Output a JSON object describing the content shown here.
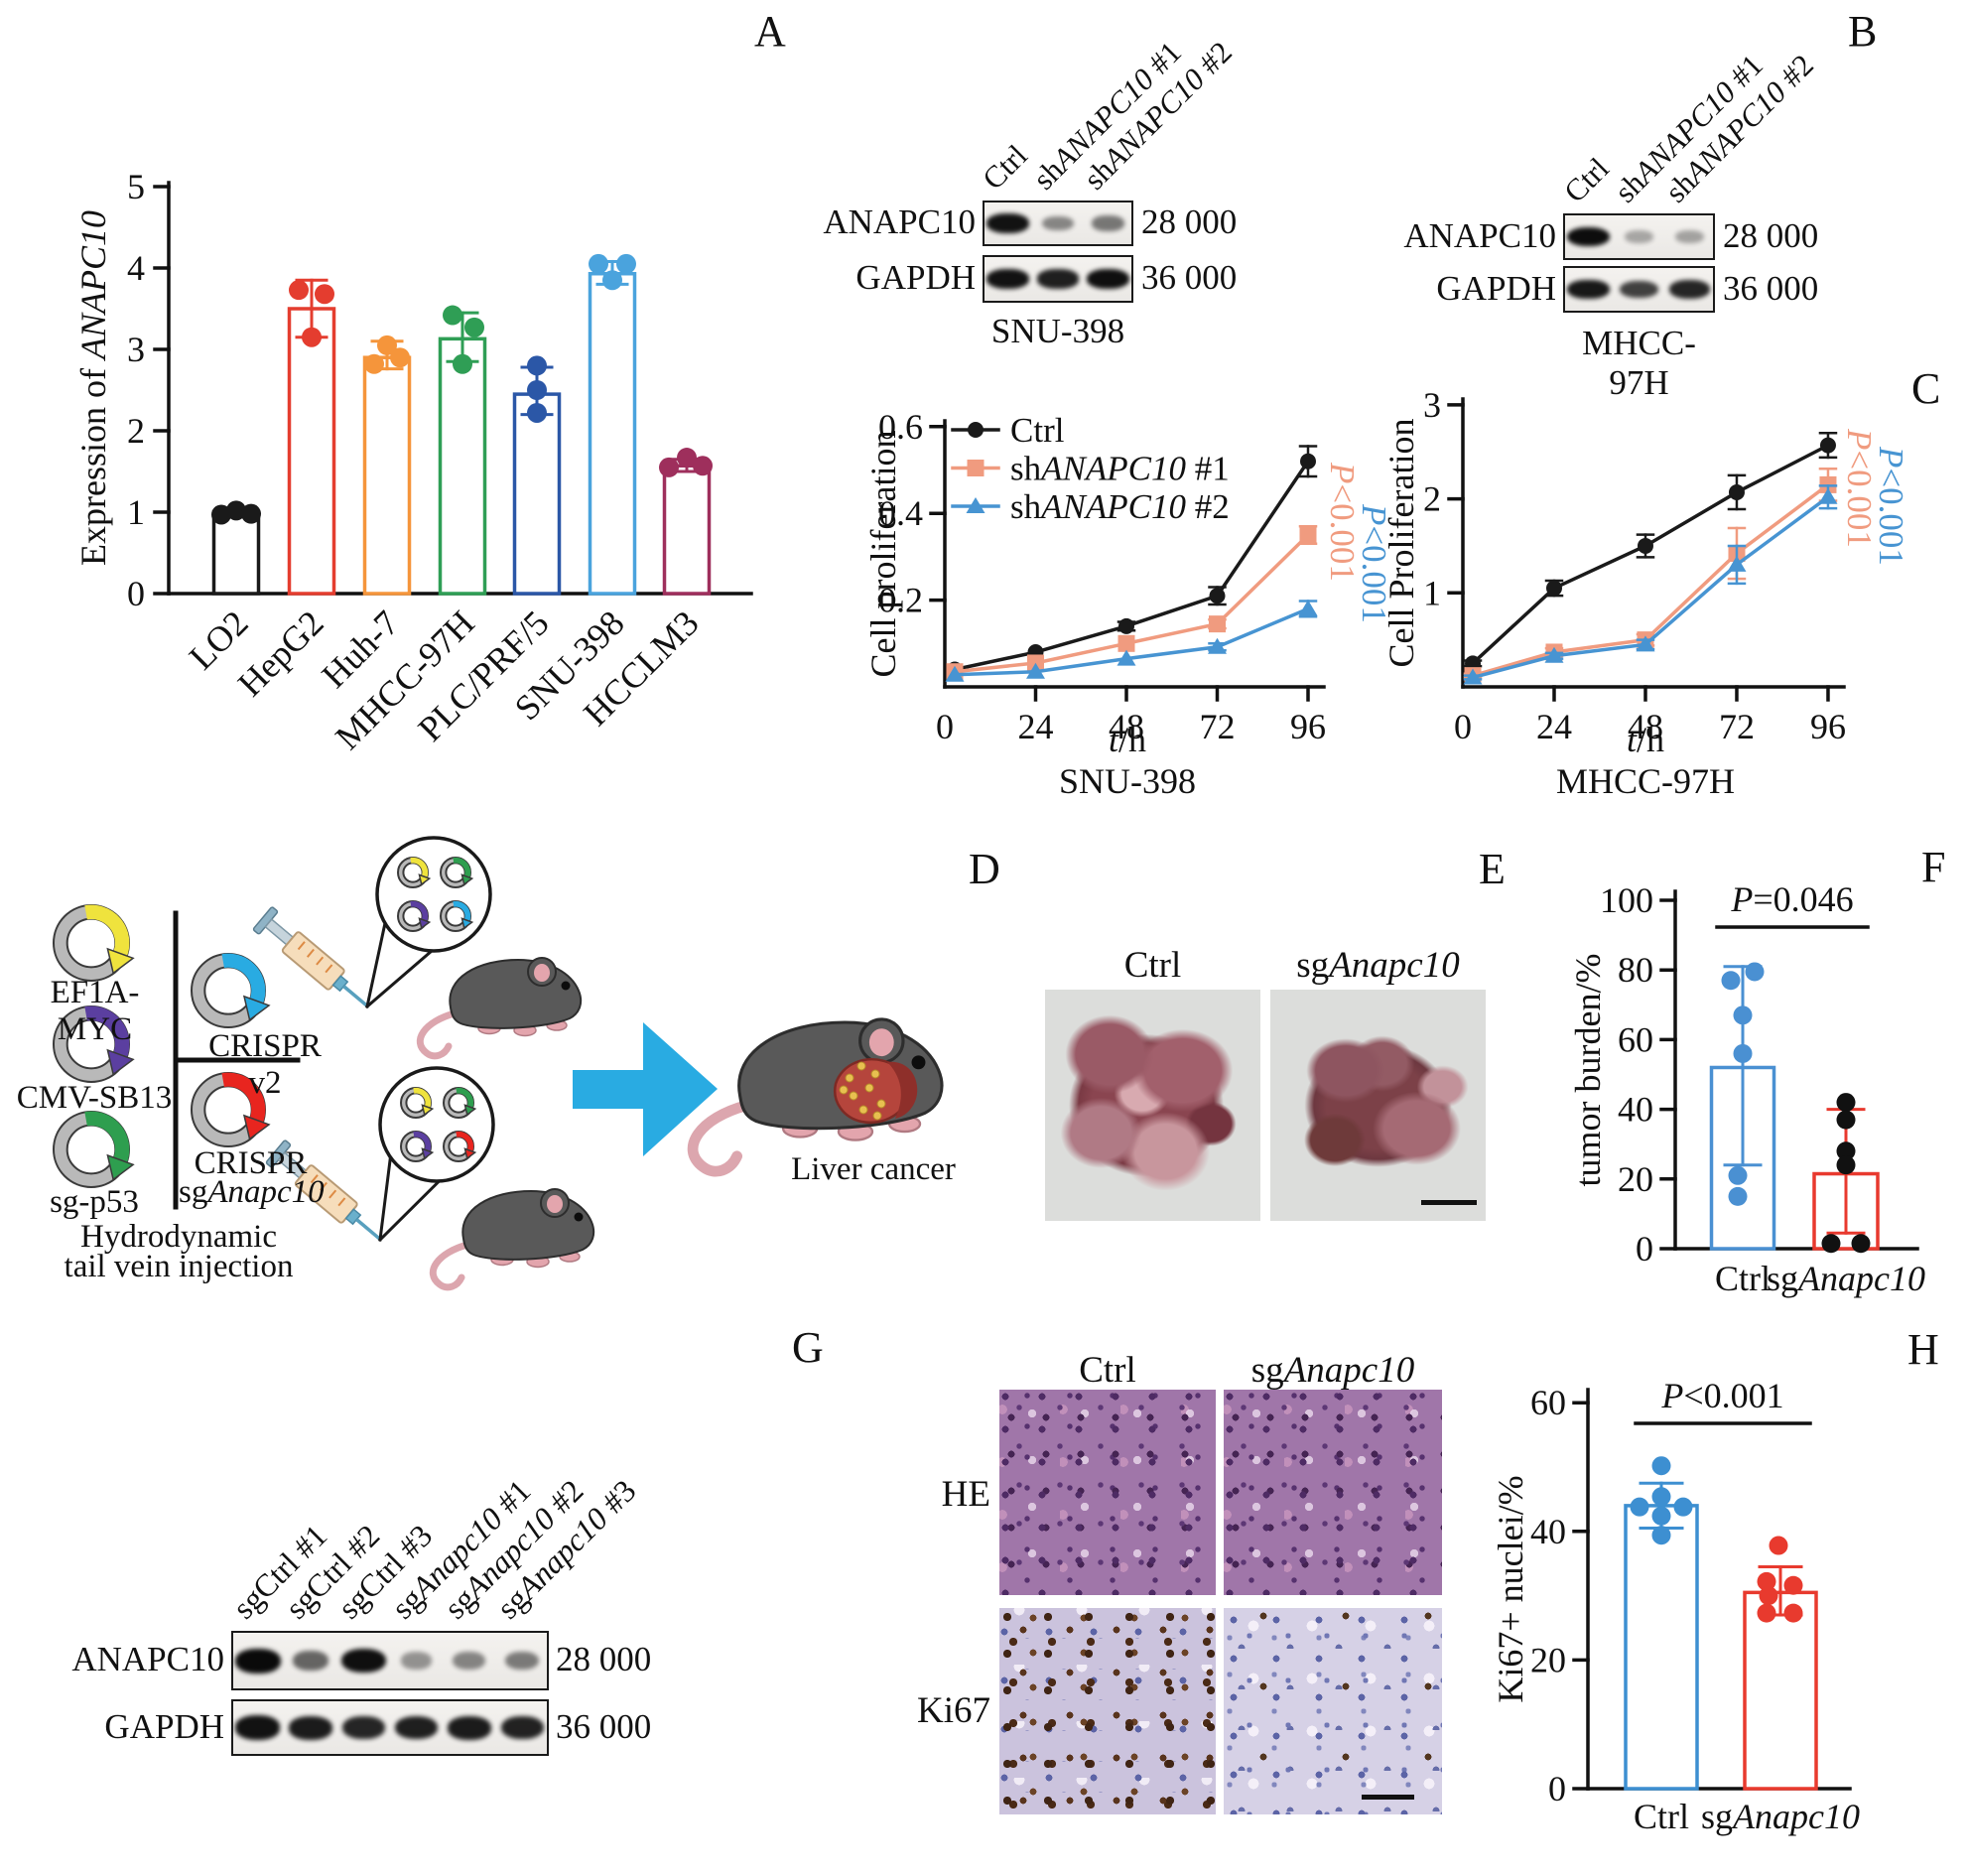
{
  "figure": {
    "panel_letters": {
      "a": "A",
      "b": "B",
      "c": "C",
      "d": "D",
      "e": "E",
      "f": "F",
      "g": "G",
      "h": "H"
    }
  },
  "chart_data": [
    {
      "id": "anapc10_expression",
      "type": "bar",
      "ylabel_rich": [
        [
          "Expression of ",
          ""
        ],
        [
          "ANAPC10",
          "i"
        ]
      ],
      "ylim": [
        0,
        5
      ],
      "yticks": [
        0,
        1,
        2,
        3,
        4,
        5
      ],
      "categories": [
        "LO2",
        "HepG2",
        "Huh-7",
        "MHCC-97H",
        "PLC/PRF/5",
        "SNU-398",
        "HCCLM3"
      ],
      "values": [
        1.0,
        3.5,
        2.9,
        3.13,
        2.45,
        3.93,
        1.57
      ],
      "errors": [
        [
          0.95,
          1.04
        ],
        [
          3.15,
          3.85
        ],
        [
          2.76,
          3.1
        ],
        [
          2.85,
          3.45
        ],
        [
          2.2,
          2.78
        ],
        [
          3.8,
          4.08
        ],
        [
          1.5,
          1.65
        ]
      ],
      "points": [
        [
          [
            -15,
            0.97
          ],
          [
            0,
            1.02
          ],
          [
            15,
            0.98
          ]
        ],
        [
          [
            -13,
            3.73
          ],
          [
            13,
            3.68
          ],
          [
            0,
            3.15
          ]
        ],
        [
          [
            -13,
            2.82
          ],
          [
            0,
            3.05
          ],
          [
            13,
            2.9
          ]
        ],
        [
          [
            -10,
            3.42
          ],
          [
            12,
            3.27
          ],
          [
            0,
            2.82
          ]
        ],
        [
          [
            0,
            2.8
          ],
          [
            0,
            2.5
          ],
          [
            0,
            2.22
          ]
        ],
        [
          [
            -14,
            4.05
          ],
          [
            14,
            4.05
          ],
          [
            0,
            3.85
          ]
        ],
        [
          [
            -18,
            1.55
          ],
          [
            0,
            1.67
          ],
          [
            16,
            1.57
          ]
        ]
      ],
      "colors": [
        "#1a1a1a",
        "#E43D2F",
        "#F5953B",
        "#2F9E55",
        "#2B57A7",
        "#4AA3DD",
        "#9E2F5C"
      ],
      "grid": false,
      "legend_position": "none"
    },
    {
      "id": "prolif_snu398",
      "type": "line",
      "ylabel_rich": [
        [
          "Cell proliferation",
          ""
        ]
      ],
      "xlabel_rich": [
        [
          "t",
          "i"
        ],
        [
          "/h",
          ""
        ]
      ],
      "cell_line": "SNU-398",
      "ylim": [
        0,
        0.6
      ],
      "yticks": [
        "0.2",
        "0.4",
        "0.6"
      ],
      "x": [
        0,
        24,
        48,
        72,
        96
      ],
      "series": [
        {
          "name_rich": [
            [
              "Ctrl",
              ""
            ]
          ],
          "marker": "circle",
          "color": "#1a1a1a",
          "values": [
            0.04,
            0.08,
            0.14,
            0.21,
            0.52
          ],
          "err": [
            0,
            0,
            0.01,
            0.02,
            0.035
          ]
        },
        {
          "name_rich": [
            [
              "sh",
              ""
            ],
            [
              "ANAPC10",
              "i"
            ],
            [
              " #1",
              ""
            ]
          ],
          "marker": "square",
          "color": "#F09B7F",
          "values": [
            0.035,
            0.055,
            0.1,
            0.145,
            0.35
          ],
          "err": [
            0,
            0,
            0,
            0.01,
            0.02
          ]
        },
        {
          "name_rich": [
            [
              "sh",
              ""
            ],
            [
              "ANAPC10",
              "i"
            ],
            [
              " #2",
              ""
            ]
          ],
          "marker": "triangle",
          "color": "#4794D2",
          "values": [
            0.028,
            0.035,
            0.065,
            0.092,
            0.18
          ],
          "err": [
            0,
            0,
            0,
            0.008,
            0.018
          ]
        }
      ],
      "annotations": [
        {
          "rich": [
            [
              "P",
              "i"
            ],
            [
              "<0.001",
              ""
            ]
          ],
          "color": "#F09B7F"
        },
        {
          "rich": [
            [
              "P",
              "i"
            ],
            [
              "<0.001",
              ""
            ]
          ],
          "color": "#4794D2"
        }
      ],
      "grid": false,
      "legend_position": "top-left"
    },
    {
      "id": "prolif_mhcc97h",
      "type": "line",
      "ylabel_rich": [
        [
          "Cell Proliferation",
          ""
        ]
      ],
      "xlabel_rich": [
        [
          "t",
          "i"
        ],
        [
          "/h",
          ""
        ]
      ],
      "cell_line": "MHCC-97H",
      "ylim": [
        0,
        3
      ],
      "yticks": [
        "1",
        "2",
        "3"
      ],
      "x": [
        0,
        24,
        48,
        72,
        96
      ],
      "series": [
        {
          "name_rich": [
            [
              "Ctrl",
              ""
            ]
          ],
          "marker": "circle",
          "color": "#1a1a1a",
          "values": [
            0.25,
            1.05,
            1.5,
            2.07,
            2.57
          ],
          "err": [
            0.03,
            0.08,
            0.12,
            0.18,
            0.13
          ]
        },
        {
          "name_rich": [
            [
              "sh",
              ""
            ],
            [
              "ANAPC10",
              "i"
            ],
            [
              " #1",
              ""
            ]
          ],
          "marker": "square",
          "color": "#F09B7F",
          "values": [
            0.12,
            0.37,
            0.5,
            1.42,
            2.15
          ],
          "err": [
            0.02,
            0.04,
            0.06,
            0.27,
            0.17
          ]
        },
        {
          "name_rich": [
            [
              "sh",
              ""
            ],
            [
              "ANAPC10",
              "i"
            ],
            [
              " #2",
              ""
            ]
          ],
          "marker": "triangle",
          "color": "#4794D2",
          "values": [
            0.1,
            0.33,
            0.45,
            1.3,
            2.02
          ],
          "err": [
            0.02,
            0.03,
            0.05,
            0.2,
            0.12
          ]
        }
      ],
      "annotations": [
        {
          "rich": [
            [
              "P",
              "i"
            ],
            [
              "<0.001",
              ""
            ]
          ],
          "color": "#F09B7F"
        },
        {
          "rich": [
            [
              "P",
              "i"
            ],
            [
              "<0.001",
              ""
            ]
          ],
          "color": "#4794D2"
        }
      ],
      "grid": false,
      "legend_position": "none"
    },
    {
      "id": "tumor_burden",
      "type": "bar",
      "ylabel": "tumor burden/%",
      "ylim": [
        0,
        100
      ],
      "yticks": [
        0,
        20,
        40,
        60,
        80,
        100
      ],
      "categories_rich": [
        [
          [
            "Ctrl",
            ""
          ]
        ],
        [
          [
            "sg",
            ""
          ],
          [
            "Anapc10",
            "i"
          ]
        ]
      ],
      "values": [
        52,
        21.5
      ],
      "errors": [
        [
          24,
          81
        ],
        [
          4.5,
          40
        ]
      ],
      "points": [
        [
          [
            -12,
            77
          ],
          [
            12,
            79.5
          ],
          [
            0,
            67
          ],
          [
            0,
            56
          ],
          [
            -5,
            21
          ],
          [
            -5,
            15
          ]
        ],
        [
          [
            0,
            42
          ],
          [
            0,
            37
          ],
          [
            0,
            28
          ],
          [
            0,
            24
          ],
          [
            -15,
            1.5
          ],
          [
            15,
            1.5
          ]
        ]
      ],
      "bar_colors": [
        "#4A90D2",
        "#E8392E"
      ],
      "dot_colors": [
        "#4A90D2",
        "#111111"
      ],
      "p_rich": [
        [
          "P",
          "i"
        ],
        [
          "=0.046",
          ""
        ]
      ],
      "grid": false,
      "legend_position": "none"
    },
    {
      "id": "ki67_nuclei",
      "type": "bar",
      "ylabel": "Ki67+ nuclei/%",
      "ylim": [
        0,
        60
      ],
      "yticks": [
        0,
        20,
        40,
        60
      ],
      "categories_rich": [
        [
          [
            "Ctrl",
            ""
          ]
        ],
        [
          [
            "sg",
            ""
          ],
          [
            "Anapc10",
            "i"
          ]
        ]
      ],
      "values": [
        44,
        30.5
      ],
      "errors": [
        [
          40.5,
          47.5
        ],
        [
          27,
          34.5
        ]
      ],
      "points": [
        [
          [
            0,
            50.2
          ],
          [
            0,
            45.4
          ],
          [
            -22,
            43.8
          ],
          [
            22,
            43.8
          ],
          [
            0,
            42.4
          ],
          [
            0,
            39.4
          ]
        ],
        [
          [
            -2,
            37.8
          ],
          [
            -14,
            32.2
          ],
          [
            13,
            31.6
          ],
          [
            -12,
            30
          ],
          [
            -14,
            27.3
          ],
          [
            13,
            27.3
          ]
        ]
      ],
      "bar_colors": [
        "#3D8FD1",
        "#E83A2E"
      ],
      "dot_colors": [
        "#3D8FD1",
        "#E83A2E"
      ],
      "p_rich": [
        [
          "P",
          "i"
        ],
        [
          "<0.001",
          ""
        ]
      ],
      "grid": false,
      "legend_position": "none"
    }
  ],
  "blots": {
    "snu398": {
      "lane_labels": [
        [
          [
            "Ctrl",
            ""
          ]
        ],
        [
          [
            "sh",
            ""
          ],
          [
            "ANAPC10",
            "i"
          ],
          [
            " #1",
            ""
          ]
        ],
        [
          [
            "sh",
            ""
          ],
          [
            "ANAPC10",
            "i"
          ],
          [
            " #2",
            ""
          ]
        ]
      ],
      "rows": [
        {
          "label": "ANAPC10",
          "mw": "28 000",
          "bands": [
            0.95,
            0.32,
            0.4
          ]
        },
        {
          "label": "GAPDH",
          "mw": "36 000",
          "bands": [
            0.95,
            0.88,
            0.97
          ]
        }
      ],
      "cell_line": "SNU-398"
    },
    "mhcc97h": {
      "lane_labels": [
        [
          [
            "Ctrl",
            ""
          ]
        ],
        [
          [
            "sh",
            ""
          ],
          [
            "ANAPC10",
            "i"
          ],
          [
            " #1",
            ""
          ]
        ],
        [
          [
            "sh",
            ""
          ],
          [
            "ANAPC10",
            "i"
          ],
          [
            " #2",
            ""
          ]
        ]
      ],
      "rows": [
        {
          "label": "ANAPC10",
          "mw": "28 000",
          "bands": [
            0.98,
            0.14,
            0.16
          ]
        },
        {
          "label": "GAPDH",
          "mw": "36 000",
          "bands": [
            0.92,
            0.7,
            0.85
          ]
        }
      ],
      "cell_line": "MHCC-97H"
    },
    "mouse_tumors": {
      "lane_labels": [
        [
          [
            "sgCtrl #1",
            ""
          ]
        ],
        [
          [
            "sgCtrl #2",
            ""
          ]
        ],
        [
          [
            "sgCtrl #3",
            ""
          ]
        ],
        [
          [
            "sg",
            ""
          ],
          [
            "Anapc10",
            "i"
          ],
          [
            " #1",
            ""
          ]
        ],
        [
          [
            "sg",
            ""
          ],
          [
            "Anapc10",
            "i"
          ],
          [
            " #2",
            ""
          ]
        ],
        [
          [
            "sg",
            ""
          ],
          [
            "Anapc10",
            "i"
          ],
          [
            " #3",
            ""
          ]
        ]
      ],
      "rows": [
        {
          "label": "ANAPC10",
          "mw": "28 000",
          "bands": [
            1,
            0.5,
            0.97,
            0.25,
            0.33,
            0.38
          ]
        },
        {
          "label": "GAPDH",
          "mw": "36 000",
          "bands": [
            0.95,
            0.9,
            0.85,
            0.88,
            0.9,
            0.87
          ]
        }
      ],
      "cell_line": null
    }
  },
  "diagram": {
    "plasmid_labels": [
      [
        [
          "EF1A-MYC",
          ""
        ]
      ],
      [
        [
          "CMV-SB13",
          ""
        ]
      ],
      [
        [
          "sg-p53",
          ""
        ]
      ]
    ],
    "plasmid_colors": [
      "#EFE33D",
      "#5B3FA0",
      "#2E9E4F"
    ],
    "crispr_v2_label": [
      [
        "CRISPR v2",
        ""
      ]
    ],
    "crispr_v2_color": "#29ABE2",
    "crispr_sg_label_line1": [
      [
        "CRISPR",
        ""
      ]
    ],
    "crispr_sg_label_line2": [
      [
        "sg",
        ""
      ],
      [
        "Anapc10",
        "i"
      ]
    ],
    "crispr_sg_color": "#E8251F",
    "injection_line1": [
      [
        "Hydrodynamic",
        ""
      ]
    ],
    "injection_line2": [
      [
        "tail vein injection",
        ""
      ]
    ],
    "callout_top_colors": [
      "#EFE33D",
      "#2E9E4F",
      "#5B3FA0",
      "#29ABE2"
    ],
    "callout_bottom_colors": [
      "#EFE33D",
      "#2E9E4F",
      "#5B3FA0",
      "#E8251F"
    ],
    "result_label": [
      [
        "Liver cancer",
        ""
      ]
    ],
    "arrow_color": "#29ABE2"
  },
  "photos": {
    "col_labels": [
      [
        [
          "Ctrl",
          ""
        ]
      ],
      [
        [
          "sg",
          ""
        ],
        [
          "Anapc10",
          "i"
        ]
      ]
    ]
  },
  "histology": {
    "col_labels": [
      [
        [
          "Ctrl",
          ""
        ]
      ],
      [
        [
          "sg",
          ""
        ],
        [
          "Anapc10",
          "i"
        ]
      ]
    ],
    "row_labels": [
      "HE",
      "Ki67"
    ]
  }
}
